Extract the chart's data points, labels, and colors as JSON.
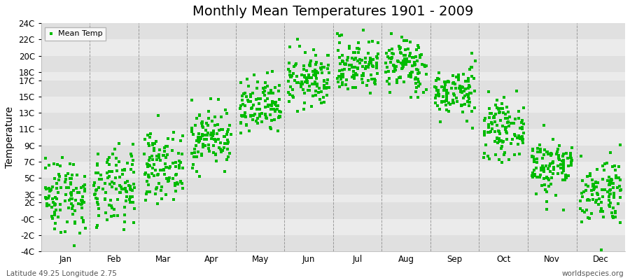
{
  "title": "Monthly Mean Temperatures 1901 - 2009",
  "ylabel": "Temperature",
  "xlabel_labels": [
    "Jan",
    "Feb",
    "Mar",
    "Apr",
    "May",
    "Jun",
    "Jul",
    "Aug",
    "Sep",
    "Oct",
    "Nov",
    "Dec"
  ],
  "subtitle": "Latitude 49.25 Longitude 2.75",
  "watermark": "worldspecies.org",
  "legend_label": "Mean Temp",
  "dot_color": "#00bb00",
  "background_color": "#ebebeb",
  "band_color_dark": "#e0e0e0",
  "band_color_light": "#ebebeb",
  "title_fontsize": 14,
  "axis_fontsize": 8.5,
  "ylabel_fontsize": 10,
  "ytick_vals": [
    -4,
    -2,
    0,
    2,
    3,
    5,
    7,
    9,
    11,
    13,
    15,
    17,
    18,
    20,
    22,
    24
  ],
  "ytick_labels": [
    "-4C",
    "-2C",
    "-0C",
    "2C",
    "3C",
    "5C",
    "7C",
    "9C",
    "11C",
    "13C",
    "15C",
    "17C",
    "18C",
    "20C",
    "22C",
    "24C"
  ],
  "ylim": [
    -4,
    24
  ],
  "start_year": 1901,
  "end_year": 2009,
  "monthly_means": [
    3.0,
    3.5,
    6.5,
    10.0,
    13.5,
    17.0,
    18.8,
    18.8,
    15.5,
    11.0,
    6.5,
    3.5
  ],
  "monthly_stds": [
    2.4,
    2.4,
    2.0,
    1.8,
    1.8,
    1.7,
    1.7,
    1.7,
    1.5,
    1.7,
    1.8,
    2.1
  ]
}
